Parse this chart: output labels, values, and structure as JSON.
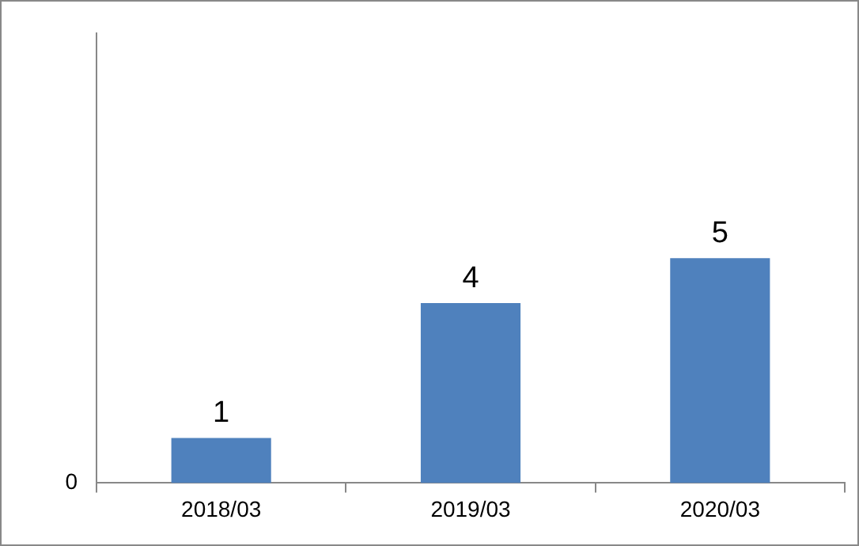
{
  "chart_data": {
    "type": "bar",
    "categories": [
      "2018/03",
      "2019/03",
      "2020/03"
    ],
    "values": [
      1,
      4,
      5
    ],
    "data_labels": true,
    "ylim": [
      0,
      10
    ],
    "color": "#4f81bd",
    "annotations": [
      "0"
    ],
    "grid": false,
    "legend": false
  }
}
